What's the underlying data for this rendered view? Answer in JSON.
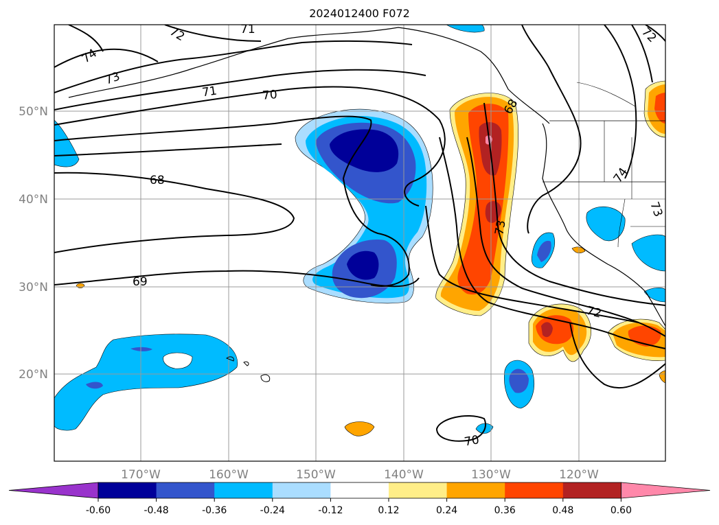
{
  "title": "2024012400 F072",
  "map": {
    "lat_labels": [
      "50°N",
      "40°N",
      "30°N",
      "20°N"
    ],
    "lon_labels": [
      "170°W",
      "160°W",
      "150°W",
      "140°W",
      "130°W",
      "120°W"
    ],
    "contour_labels": [
      "74",
      "73",
      "72",
      "71",
      "71",
      "70",
      "68",
      "69",
      "74",
      "73",
      "73",
      "72",
      "72",
      "70",
      "68"
    ],
    "grid": true
  },
  "colorbar": {
    "ticks": [
      "-0.60",
      "-0.48",
      "-0.36",
      "-0.24",
      "-0.12",
      "0.12",
      "0.24",
      "0.36",
      "0.48",
      "0.60"
    ],
    "colors": [
      "#9933cc",
      "#000099",
      "#3355cc",
      "#00bbff",
      "#aaddff",
      "#ffffff",
      "#ffee88",
      "#ffa500",
      "#ff4500",
      "#b22222",
      "#ff88aa"
    ]
  }
}
